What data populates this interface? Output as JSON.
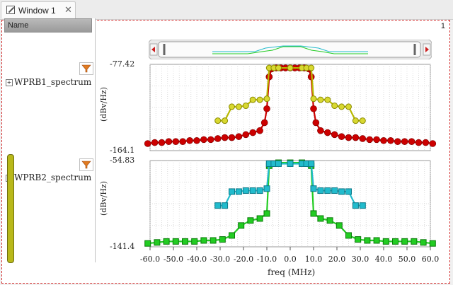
{
  "tab": {
    "title": "Window 1",
    "close": "✕"
  },
  "page_number": "1",
  "left_panel": {
    "header": "Name",
    "signals": [
      {
        "name": "WPRB1_spectrum"
      },
      {
        "name": "WPRB2_spectrum"
      }
    ]
  },
  "x_axis": {
    "label": "freq (MHz)",
    "ticks": [
      "-60.0",
      "-50.0",
      "-40.0",
      "-30.0",
      "-20.0",
      "-10.0",
      "0.0",
      "10.0",
      "20.0",
      "30.0",
      "40.0",
      "50.0",
      "60.0"
    ]
  },
  "plot1": {
    "ymax_label": "-77.42",
    "ymin_label": "-164.1",
    "units": "(dBv/Hz)"
  },
  "plot2": {
    "ymax_label": "-54.83",
    "ymin_label": "-141.4",
    "units": "(dBv/Hz)"
  },
  "colors": {
    "red": "#cc0000",
    "olive": "#b8b800",
    "green": "#22cc22",
    "cyan": "#22bbcc"
  },
  "chart_data": [
    {
      "type": "line",
      "xlabel": "freq (MHz)",
      "ylabel": "(dBv/Hz)",
      "xlim": [
        -60,
        60
      ],
      "ylim": [
        -164.1,
        -77.42
      ],
      "series": [
        {
          "color": "#cc0000",
          "x": [
            -61,
            -58,
            -55,
            -52,
            -49,
            -46,
            -43,
            -40,
            -37,
            -34,
            -31,
            -28,
            -25,
            -22,
            -19,
            -16,
            -13,
            -11,
            -10,
            -9,
            -8,
            -6,
            -4,
            -2,
            0,
            2,
            4,
            6,
            8,
            9,
            10,
            11,
            13,
            16,
            19,
            22,
            25,
            28,
            31,
            34,
            37,
            40,
            43,
            46,
            49,
            52,
            55,
            58,
            61
          ],
          "y": [
            -157,
            -156,
            -156,
            -155,
            -155,
            -155,
            -154,
            -154,
            -153,
            -153,
            -152,
            -151,
            -151,
            -150,
            -148,
            -146,
            -144,
            -136,
            -122,
            -90,
            -82,
            -81,
            -81,
            -81,
            -81,
            -81,
            -81,
            -81,
            -82,
            -90,
            -122,
            -136,
            -144,
            -146,
            -148,
            -150,
            -151,
            -151,
            -152,
            -153,
            -153,
            -154,
            -154,
            -155,
            -155,
            -155,
            -156,
            -156,
            -157
          ]
        },
        {
          "color": "#b8b800",
          "x": [
            -31,
            -28,
            -25,
            -22,
            -19,
            -16,
            -13,
            -10,
            -9,
            -7,
            -5,
            0,
            5,
            7,
            9,
            10,
            13,
            16,
            19,
            22,
            25,
            28,
            31
          ],
          "y": [
            -134,
            -134,
            -120,
            -120,
            -119,
            -113,
            -113,
            -112,
            -81,
            -81,
            -81,
            -81,
            -81,
            -81,
            -81,
            -112,
            -113,
            -113,
            -119,
            -120,
            -120,
            -134,
            -134
          ]
        }
      ]
    },
    {
      "type": "line",
      "xlabel": "freq (MHz)",
      "ylabel": "(dBv/Hz)",
      "xlim": [
        -60,
        60
      ],
      "ylim": [
        -141.4,
        -54.83
      ],
      "series": [
        {
          "color": "#22cc22",
          "x": [
            -61,
            -57,
            -53,
            -49,
            -45,
            -41,
            -37,
            -33,
            -29,
            -25,
            -21,
            -17,
            -13,
            -10,
            -9,
            -7,
            -5,
            0,
            5,
            7,
            9,
            10,
            13,
            17,
            21,
            25,
            29,
            33,
            37,
            41,
            45,
            49,
            53,
            57,
            61
          ],
          "y": [
            -138,
            -137,
            -136,
            -136,
            -136,
            -136,
            -135,
            -135,
            -134,
            -130,
            -120,
            -115,
            -113,
            -108,
            -60,
            -58,
            -57,
            -57,
            -57,
            -58,
            -60,
            -108,
            -113,
            -115,
            -120,
            -130,
            -134,
            -135,
            -135,
            -136,
            -136,
            -136,
            -136,
            -137,
            -138
          ]
        },
        {
          "color": "#22bbcc",
          "x": [
            -31,
            -28,
            -25,
            -22,
            -19,
            -16,
            -13,
            -10,
            -9,
            -7,
            -5,
            0,
            5,
            7,
            9,
            10,
            13,
            16,
            19,
            22,
            25,
            28,
            31
          ],
          "y": [
            -100,
            -100,
            -86,
            -86,
            -85,
            -85,
            -85,
            -83,
            -58,
            -58,
            -58,
            -58,
            -58,
            -58,
            -58,
            -83,
            -85,
            -85,
            -85,
            -86,
            -86,
            -100,
            -100
          ]
        }
      ]
    }
  ]
}
